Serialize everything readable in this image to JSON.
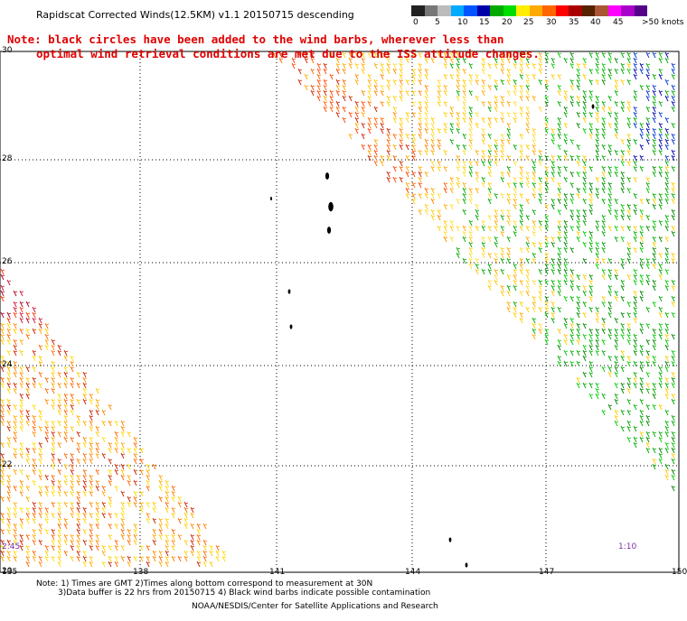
{
  "header": {
    "title": "Rapidscat Corrected Winds(12.5KM) v1.1 20150715 descending",
    "note_line1": "Note: black circles have been added to the wind barbs, wherever less than",
    "note_line2": "optimal wind retrieval conditions are met due to the ISS attitude changes."
  },
  "legend": {
    "colors": [
      "#222222",
      "#777777",
      "#bbbbbb",
      "#00aaff",
      "#0055ff",
      "#0000aa",
      "#00aa00",
      "#00dd00",
      "#ffee00",
      "#ffaa00",
      "#ff6600",
      "#ff0000",
      "#aa0000",
      "#552200",
      "#aa5533",
      "#ff00ff",
      "#aa00cc",
      "#550088"
    ],
    "labels": [
      "0",
      "5",
      "10",
      "15",
      "20",
      "25",
      "30",
      "35",
      "40",
      "45",
      ">50 knots"
    ]
  },
  "map": {
    "longitude_labels": [
      "135",
      "138",
      "141",
      "144",
      "147",
      "150"
    ],
    "latitude_labels": [
      "30",
      "28",
      "26",
      "24",
      "22",
      "20"
    ],
    "time_left": "2:45",
    "time_right": "1:10"
  },
  "footer": {
    "line1": "Note: 1) Times are GMT 2)Times along bottom correspond to measurement at 30N",
    "line2": "3)Data buffer is 22 hrs from 20150715 4) Black wind barbs indicate possible contamination",
    "line3": "NOAA/NESDIS/Center for Satellite Applications and Research"
  }
}
